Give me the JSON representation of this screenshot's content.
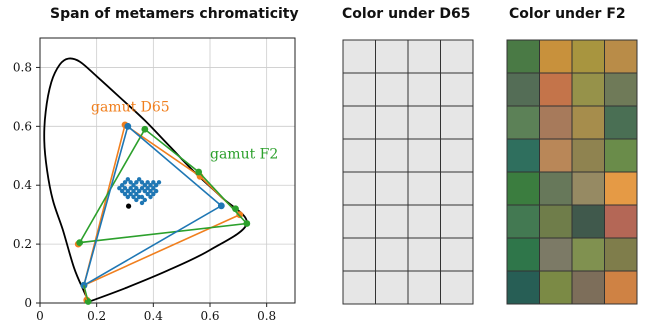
{
  "titles": {
    "left": "Span of metamers chromaticity",
    "middle": "Color under D65",
    "right": "Color under F2"
  },
  "colors": {
    "d65": "#f07f1e",
    "f2": "#2ca02c",
    "metamer": "#1f77b4",
    "locus": "#000000",
    "grid": "#cccccc",
    "neutral": "#e6e6e6"
  },
  "chart_data": [
    {
      "type": "scatter",
      "title": "Span of metamers chromaticity",
      "xlabel": "",
      "ylabel": "",
      "xlim": [
        0,
        0.9
      ],
      "ylim": [
        0,
        0.9
      ],
      "xticks": [
        "0",
        "0.2",
        "0.4",
        "0.6",
        "0.8"
      ],
      "yticks": [
        "0",
        "0.2",
        "0.4",
        "0.6",
        "0.8"
      ],
      "grid": true,
      "spectral_locus": [
        [
          0.175,
          0.005
        ],
        [
          0.17,
          0.01
        ],
        [
          0.155,
          0.04
        ],
        [
          0.12,
          0.12
        ],
        [
          0.08,
          0.25
        ],
        [
          0.045,
          0.35
        ],
        [
          0.025,
          0.45
        ],
        [
          0.015,
          0.55
        ],
        [
          0.02,
          0.65
        ],
        [
          0.04,
          0.75
        ],
        [
          0.07,
          0.81
        ],
        [
          0.1,
          0.83
        ],
        [
          0.14,
          0.82
        ],
        [
          0.2,
          0.77
        ],
        [
          0.28,
          0.7
        ],
        [
          0.37,
          0.62
        ],
        [
          0.46,
          0.53
        ],
        [
          0.55,
          0.44
        ],
        [
          0.64,
          0.36
        ],
        [
          0.73,
          0.27
        ],
        [
          0.6,
          0.18
        ],
        [
          0.45,
          0.11
        ],
        [
          0.3,
          0.05
        ],
        [
          0.175,
          0.005
        ]
      ],
      "annotations": [
        {
          "text": "gamut D65",
          "x": 0.18,
          "y": 0.65,
          "series": "D65"
        },
        {
          "text": "gamut F2",
          "x": 0.6,
          "y": 0.49,
          "series": "F2"
        }
      ],
      "series": [
        {
          "name": "gamut D65",
          "kind": "polygon",
          "x": [
            0.155,
            0.3,
            0.565,
            0.705
          ],
          "y": [
            0.06,
            0.605,
            0.43,
            0.3
          ],
          "extra_points": [
            [
              0.135,
              0.2
            ],
            [
              0.165,
              0.01
            ]
          ]
        },
        {
          "name": "gamut F2",
          "kind": "polygon",
          "x": [
            0.14,
            0.37,
            0.56,
            0.73
          ],
          "y": [
            0.205,
            0.59,
            0.445,
            0.27
          ],
          "extra_points": [
            [
              0.155,
              0.06
            ],
            [
              0.17,
              0.005
            ],
            [
              0.69,
              0.32
            ]
          ]
        },
        {
          "name": "metamer gamut",
          "kind": "polygon",
          "x": [
            0.155,
            0.31,
            0.64
          ],
          "y": [
            0.06,
            0.6,
            0.33
          ]
        },
        {
          "name": "metamers",
          "kind": "scatter",
          "points": [
            [
              0.28,
              0.39
            ],
            [
              0.29,
              0.4
            ],
            [
              0.3,
              0.41
            ],
            [
              0.31,
              0.42
            ],
            [
              0.32,
              0.41
            ],
            [
              0.33,
              0.4
            ],
            [
              0.34,
              0.41
            ],
            [
              0.35,
              0.42
            ],
            [
              0.36,
              0.41
            ],
            [
              0.37,
              0.4
            ],
            [
              0.38,
              0.41
            ],
            [
              0.39,
              0.4
            ],
            [
              0.4,
              0.41
            ],
            [
              0.41,
              0.4
            ],
            [
              0.42,
              0.41
            ],
            [
              0.29,
              0.38
            ],
            [
              0.3,
              0.39
            ],
            [
              0.31,
              0.38
            ],
            [
              0.32,
              0.39
            ],
            [
              0.33,
              0.38
            ],
            [
              0.34,
              0.39
            ],
            [
              0.35,
              0.38
            ],
            [
              0.36,
              0.39
            ],
            [
              0.37,
              0.38
            ],
            [
              0.38,
              0.39
            ],
            [
              0.39,
              0.38
            ],
            [
              0.4,
              0.39
            ],
            [
              0.41,
              0.38
            ],
            [
              0.3,
              0.37
            ],
            [
              0.32,
              0.37
            ],
            [
              0.34,
              0.37
            ],
            [
              0.36,
              0.36
            ],
            [
              0.38,
              0.37
            ],
            [
              0.4,
              0.37
            ],
            [
              0.33,
              0.36
            ],
            [
              0.35,
              0.36
            ],
            [
              0.37,
              0.35
            ],
            [
              0.39,
              0.36
            ],
            [
              0.31,
              0.36
            ],
            [
              0.36,
              0.34
            ],
            [
              0.34,
              0.35
            ]
          ]
        },
        {
          "name": "white point",
          "kind": "scatter",
          "points": [
            [
              0.3127,
              0.329
            ]
          ]
        }
      ]
    },
    {
      "type": "table",
      "title": "Color under D65",
      "rows": 8,
      "cols": 4,
      "cells": [
        [
          "#e6e6e6",
          "#e6e6e6",
          "#e6e6e6",
          "#e6e6e6"
        ],
        [
          "#e6e6e6",
          "#e6e6e6",
          "#e6e6e6",
          "#e6e6e6"
        ],
        [
          "#e6e6e6",
          "#e6e6e6",
          "#e6e6e6",
          "#e6e6e6"
        ],
        [
          "#e6e6e6",
          "#e6e6e6",
          "#e6e6e6",
          "#e6e6e6"
        ],
        [
          "#e6e6e6",
          "#e6e6e6",
          "#e6e6e6",
          "#e6e6e6"
        ],
        [
          "#e6e6e6",
          "#e6e6e6",
          "#e6e6e6",
          "#e6e6e6"
        ],
        [
          "#e6e6e6",
          "#e6e6e6",
          "#e6e6e6",
          "#e6e6e6"
        ],
        [
          "#e6e6e6",
          "#e6e6e6",
          "#e6e6e6",
          "#e6e6e6"
        ]
      ]
    },
    {
      "type": "table",
      "title": "Color under F2",
      "rows": 8,
      "cols": 4,
      "cells": [
        [
          "#4a7a45",
          "#c8913c",
          "#a8953f",
          "#b98c48"
        ],
        [
          "#546d56",
          "#c4744a",
          "#96924a",
          "#6f7a58"
        ],
        [
          "#5c8157",
          "#a77a5b",
          "#a68d4c",
          "#4a6f54"
        ],
        [
          "#2f6f5e",
          "#b98758",
          "#8f8350",
          "#6a8c4a"
        ],
        [
          "#3b7d3f",
          "#67785a",
          "#968a63",
          "#e59a45"
        ],
        [
          "#437952",
          "#6f7d4a",
          "#40594c",
          "#b46756"
        ],
        [
          "#2f764a",
          "#7c7a66",
          "#809150",
          "#7f7d4b"
        ],
        [
          "#275e55",
          "#7b8a45",
          "#7d6e5a",
          "#cf8244"
        ]
      ]
    }
  ]
}
